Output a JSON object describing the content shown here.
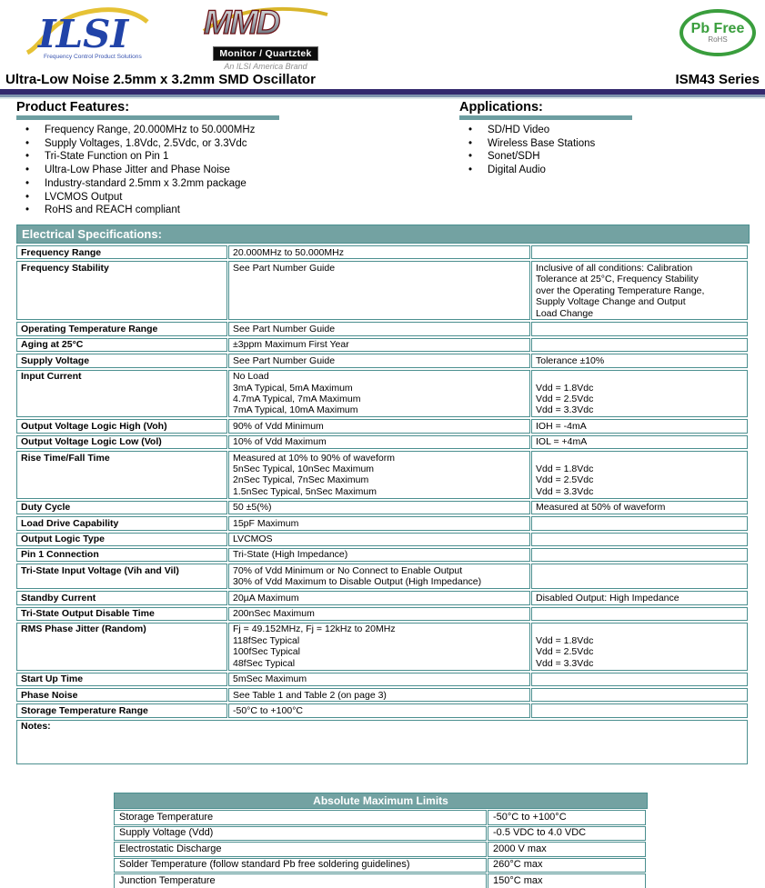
{
  "header": {
    "ilsi_logo": {
      "text": "ILSI",
      "tagline": "Frequency Control Product Solutions"
    },
    "mmd_logo": {
      "text": "MMD",
      "subtitle": "Monitor / Quartztek",
      "brand_line": "An ILSI America Brand"
    },
    "pb_free_badge": {
      "line1": "Pb Free",
      "line2": "RoHS"
    },
    "title": "Ultra-Low Noise 2.5mm x 3.2mm SMD Oscillator",
    "series": "ISM43 Series"
  },
  "product_features": {
    "heading": "Product Features:",
    "items": [
      "Frequency Range, 20.000MHz to 50.000MHz",
      "Supply Voltages, 1.8Vdc, 2.5Vdc, or 3.3Vdc",
      "Tri-State Function on Pin 1",
      "Ultra-Low Phase Jitter and Phase Noise",
      "Industry-standard 2.5mm x 3.2mm package",
      "LVCMOS Output",
      "RoHS and REACH compliant"
    ]
  },
  "applications": {
    "heading": "Applications:",
    "items": [
      "SD/HD Video",
      "Wireless Base Stations",
      "Sonet/SDH",
      "Digital Audio"
    ]
  },
  "electrical_specifications": {
    "heading": "Electrical Specifications:",
    "notes_label": "Notes:",
    "rows": [
      {
        "parameter": "Frequency Range",
        "values": [
          "20.000MHz to 50.000MHz"
        ],
        "notes": []
      },
      {
        "parameter": "Frequency Stability",
        "values": [
          "See Part Number Guide"
        ],
        "notes": [
          "Inclusive of all conditions: Calibration",
          "Tolerance at 25°C, Frequency Stability",
          "over the Operating Temperature Range,",
          "Supply Voltage Change and Output",
          "Load Change"
        ]
      },
      {
        "parameter": "Operating Temperature Range",
        "values": [
          "See Part Number Guide"
        ],
        "notes": []
      },
      {
        "parameter": "Aging at 25°C",
        "values": [
          "±3ppm Maximum First Year"
        ],
        "notes": []
      },
      {
        "parameter": "Supply Voltage",
        "values": [
          "See Part Number Guide"
        ],
        "notes": [
          "Tolerance ±10%"
        ]
      },
      {
        "parameter": "Input Current",
        "values": [
          "No Load",
          "3mA Typical, 5mA Maximum",
          "4.7mA Typical, 7mA Maximum",
          "7mA Typical, 10mA Maximum"
        ],
        "notes": [
          "",
          "Vdd = 1.8Vdc",
          "Vdd = 2.5Vdc",
          "Vdd = 3.3Vdc"
        ]
      },
      {
        "parameter": "Output Voltage Logic High (Voh)",
        "values": [
          "90% of Vdd Minimum"
        ],
        "notes": [
          "IOH = -4mA"
        ]
      },
      {
        "parameter": "Output Voltage Logic Low (Vol)",
        "values": [
          "10% of Vdd Maximum"
        ],
        "notes": [
          "IOL = +4mA"
        ]
      },
      {
        "parameter": "Rise Time/Fall Time",
        "values": [
          "Measured at 10% to 90% of waveform",
          "5nSec Typical, 10nSec Maximum",
          "2nSec Typical, 7nSec Maximum",
          "1.5nSec Typical, 5nSec Maximum"
        ],
        "notes": [
          "",
          "Vdd = 1.8Vdc",
          "Vdd = 2.5Vdc",
          "Vdd = 3.3Vdc"
        ]
      },
      {
        "parameter": "Duty Cycle",
        "values": [
          "50 ±5(%)"
        ],
        "notes": [
          "Measured at 50% of waveform"
        ]
      },
      {
        "parameter": "Load Drive Capability",
        "values": [
          "15pF Maximum"
        ],
        "notes": []
      },
      {
        "parameter": "Output Logic Type",
        "values": [
          "LVCMOS"
        ],
        "notes": []
      },
      {
        "parameter": "Pin 1 Connection",
        "values": [
          "Tri-State (High Impedance)"
        ],
        "notes": []
      },
      {
        "parameter": "Tri-State Input Voltage (Vih and Vil)",
        "values": [
          "70% of Vdd Minimum or No Connect to Enable Output",
          "30% of Vdd Maximum to Disable Output (High Impedance)"
        ],
        "notes": []
      },
      {
        "parameter": "Standby Current",
        "values": [
          "20µA Maximum"
        ],
        "notes": [
          "Disabled Output: High Impedance"
        ]
      },
      {
        "parameter": "Tri-State Output Disable Time",
        "values": [
          "200nSec Maximum"
        ],
        "notes": []
      },
      {
        "parameter": "RMS Phase Jitter (Random)",
        "values": [
          "Fj = 49.152MHz, Fj = 12kHz to 20MHz",
          "118fSec Typical",
          "100fSec Typical",
          "48fSec Typical"
        ],
        "notes": [
          "",
          "Vdd = 1.8Vdc",
          "Vdd = 2.5Vdc",
          "Vdd = 3.3Vdc"
        ]
      },
      {
        "parameter": "Start Up Time",
        "values": [
          "5mSec Maximum"
        ],
        "notes": []
      },
      {
        "parameter": "Phase Noise",
        "values": [
          "See Table 1 and Table 2 (on page 3)"
        ],
        "notes": []
      },
      {
        "parameter": "Storage Temperature Range",
        "values": [
          "-50°C to +100°C"
        ],
        "notes": []
      }
    ]
  },
  "absolute_maximum_limits": {
    "heading": "Absolute Maximum Limits",
    "rows": [
      {
        "parameter": "Storage Temperature",
        "value": "-50°C to +100°C"
      },
      {
        "parameter": "Supply Voltage (Vdd)",
        "value": "-0.5 VDC to 4.0 VDC"
      },
      {
        "parameter": "Electrostatic Discharge",
        "value": "2000 V max"
      },
      {
        "parameter": "Solder Temperature (follow standard Pb free soldering guidelines)",
        "value": "260°C max"
      },
      {
        "parameter": "Junction Temperature",
        "value": "150°C max"
      }
    ]
  },
  "colors": {
    "teal_header": "#73a2a2",
    "teal_border": "#4b8f8f",
    "navy_bar": "#33296d",
    "slate_bar": "#7e93ad",
    "ilsi_blue": "#2143a8",
    "swoosh_yellow": "#e6c235",
    "pbfree_green": "#3a9e3d",
    "mmd_maroon": "#6b1216"
  }
}
